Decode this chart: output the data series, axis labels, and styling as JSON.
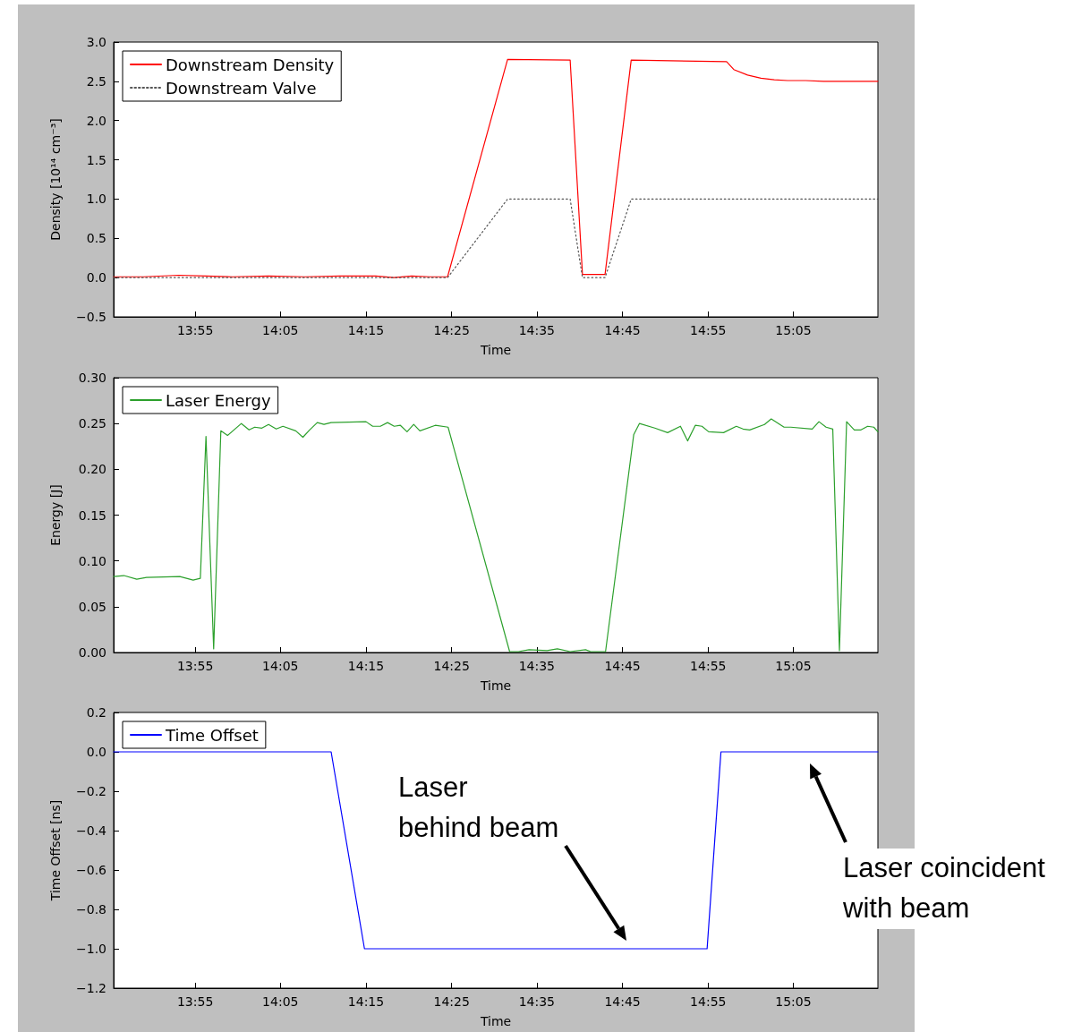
{
  "chart_data": [
    {
      "type": "line",
      "xlabel": "Time",
      "ylabel": "Density [10¹⁴ cm⁻³]",
      "xlim": [
        13.758,
        15.248
      ],
      "ylim": [
        -0.5,
        3.0
      ],
      "xticks": [
        {
          "value": 13.917,
          "label": "13:55"
        },
        {
          "value": 14.083,
          "label": "14:05"
        },
        {
          "value": 14.25,
          "label": "14:15"
        },
        {
          "value": 14.417,
          "label": "14:25"
        },
        {
          "value": 14.583,
          "label": "14:35"
        },
        {
          "value": 14.75,
          "label": "14:45"
        },
        {
          "value": 14.917,
          "label": "14:55"
        },
        {
          "value": 15.083,
          "label": "15:05"
        }
      ],
      "yticks": [
        {
          "value": -0.5,
          "label": "−0.5"
        },
        {
          "value": 0,
          "label": "0.0"
        },
        {
          "value": 0.5,
          "label": "0.5"
        },
        {
          "value": 1.0,
          "label": "1.0"
        },
        {
          "value": 1.5,
          "label": "1.5"
        },
        {
          "value": 2.0,
          "label": "2.0"
        },
        {
          "value": 2.5,
          "label": "2.5"
        },
        {
          "value": 3.0,
          "label": "3.0"
        }
      ],
      "grid": false,
      "legend": "top left",
      "marker": "none",
      "series": [
        {
          "name": "Downstream Density",
          "color": "#ff0000",
          "line_style": "solid",
          "x": [
            13.758,
            13.816,
            13.885,
            13.938,
            13.99,
            14.06,
            14.13,
            14.199,
            14.269,
            14.304,
            14.339,
            14.374,
            14.409,
            14.526,
            14.648,
            14.672,
            14.716,
            14.767,
            14.953,
            14.967,
            14.994,
            15.02,
            15.046,
            15.072,
            15.107,
            15.142,
            15.248
          ],
          "values": [
            0.01,
            0.01,
            0.03,
            0.02,
            0.01,
            0.02,
            0.01,
            0.02,
            0.02,
            0.0,
            0.02,
            0.01,
            0.01,
            2.78,
            2.77,
            0.04,
            0.04,
            2.77,
            2.75,
            2.65,
            2.58,
            2.54,
            2.52,
            2.51,
            2.51,
            2.5,
            2.5
          ]
        },
        {
          "name": "Downstream Valve",
          "color": "#555555",
          "line_style": "dotted",
          "x": [
            13.758,
            14.409,
            14.526,
            14.648,
            14.672,
            14.716,
            14.767,
            15.248
          ],
          "values": [
            0,
            0,
            1,
            1,
            0,
            0,
            1,
            1
          ]
        }
      ]
    },
    {
      "type": "line",
      "xlabel": "Time",
      "ylabel": "Energy [J]",
      "xlim": [
        13.758,
        15.248
      ],
      "ylim": [
        0,
        0.3
      ],
      "xticks": [
        {
          "value": 13.917,
          "label": "13:55"
        },
        {
          "value": 14.083,
          "label": "14:05"
        },
        {
          "value": 14.25,
          "label": "14:15"
        },
        {
          "value": 14.417,
          "label": "14:25"
        },
        {
          "value": 14.583,
          "label": "14:35"
        },
        {
          "value": 14.75,
          "label": "14:45"
        },
        {
          "value": 14.917,
          "label": "14:55"
        },
        {
          "value": 15.083,
          "label": "15:05"
        }
      ],
      "yticks": [
        {
          "value": 0,
          "label": "0.00"
        },
        {
          "value": 0.05,
          "label": "0.05"
        },
        {
          "value": 0.1,
          "label": "0.10"
        },
        {
          "value": 0.15,
          "label": "0.15"
        },
        {
          "value": 0.2,
          "label": "0.20"
        },
        {
          "value": 0.25,
          "label": "0.25"
        },
        {
          "value": 0.3,
          "label": "0.30"
        }
      ],
      "grid": false,
      "legend": "top left",
      "marker": "none",
      "series": [
        {
          "name": "Laser Energy",
          "color": "#2ca02c",
          "line_style": "solid",
          "x": [
            13.758,
            13.778,
            13.803,
            13.822,
            13.887,
            13.913,
            13.927,
            13.938,
            13.953,
            13.967,
            13.98,
            14.007,
            14.022,
            14.033,
            14.047,
            14.06,
            14.075,
            14.088,
            14.113,
            14.127,
            14.14,
            14.155,
            14.168,
            14.182,
            14.25,
            14.263,
            14.278,
            14.292,
            14.305,
            14.317,
            14.33,
            14.343,
            14.355,
            14.385,
            14.41,
            14.53,
            14.547,
            14.568,
            14.603,
            14.623,
            14.648,
            14.678,
            14.688,
            14.717,
            14.772,
            14.783,
            14.813,
            14.838,
            14.863,
            14.877,
            14.892,
            14.905,
            14.918,
            14.947,
            14.972,
            14.985,
            14.998,
            15.027,
            15.04,
            15.065,
            15.078,
            15.12,
            15.133,
            15.147,
            15.16,
            15.173,
            15.187,
            15.202,
            15.215,
            15.228,
            15.24,
            15.248
          ],
          "values": [
            0.083,
            0.084,
            0.08,
            0.082,
            0.083,
            0.079,
            0.081,
            0.236,
            0.004,
            0.242,
            0.237,
            0.25,
            0.243,
            0.246,
            0.245,
            0.249,
            0.244,
            0.247,
            0.242,
            0.235,
            0.243,
            0.251,
            0.249,
            0.251,
            0.252,
            0.247,
            0.247,
            0.251,
            0.247,
            0.248,
            0.241,
            0.249,
            0.242,
            0.248,
            0.246,
            0.001,
            0.001,
            0.003,
            0.002,
            0.004,
            0.001,
            0.003,
            0.001,
            0.001,
            0.238,
            0.25,
            0.245,
            0.24,
            0.247,
            0.231,
            0.248,
            0.247,
            0.241,
            0.24,
            0.247,
            0.244,
            0.243,
            0.249,
            0.255,
            0.246,
            0.246,
            0.244,
            0.252,
            0.246,
            0.244,
            0.002,
            0.252,
            0.243,
            0.243,
            0.247,
            0.246,
            0.241
          ]
        }
      ]
    },
    {
      "type": "line",
      "xlabel": "Time",
      "ylabel": "Time Offset [ns]",
      "xlim": [
        13.758,
        15.248
      ],
      "ylim": [
        -1.2,
        0.2
      ],
      "xticks": [
        {
          "value": 13.917,
          "label": "13:55"
        },
        {
          "value": 14.083,
          "label": "14:05"
        },
        {
          "value": 14.25,
          "label": "14:15"
        },
        {
          "value": 14.417,
          "label": "14:25"
        },
        {
          "value": 14.583,
          "label": "14:35"
        },
        {
          "value": 14.75,
          "label": "14:45"
        },
        {
          "value": 14.917,
          "label": "14:55"
        },
        {
          "value": 15.083,
          "label": "15:05"
        }
      ],
      "yticks": [
        {
          "value": -1.2,
          "label": "−1.2"
        },
        {
          "value": -1.0,
          "label": "−1.0"
        },
        {
          "value": -0.8,
          "label": "−0.8"
        },
        {
          "value": -0.6,
          "label": "−0.6"
        },
        {
          "value": -0.4,
          "label": "−0.4"
        },
        {
          "value": -0.2,
          "label": "−0.2"
        },
        {
          "value": 0,
          "label": "0.0"
        },
        {
          "value": 0.2,
          "label": "0.2"
        }
      ],
      "grid": false,
      "legend": "top left",
      "marker": "none",
      "series": [
        {
          "name": "Time Offset",
          "color": "#0000ff",
          "line_style": "solid",
          "x": [
            13.758,
            14.182,
            14.247,
            14.915,
            14.942,
            15.248
          ],
          "values": [
            0,
            0,
            -1,
            -1,
            0,
            0
          ]
        }
      ],
      "annotations": [
        "Laser\nbehind beam",
        "Laser coincident\nwith beam"
      ]
    }
  ]
}
